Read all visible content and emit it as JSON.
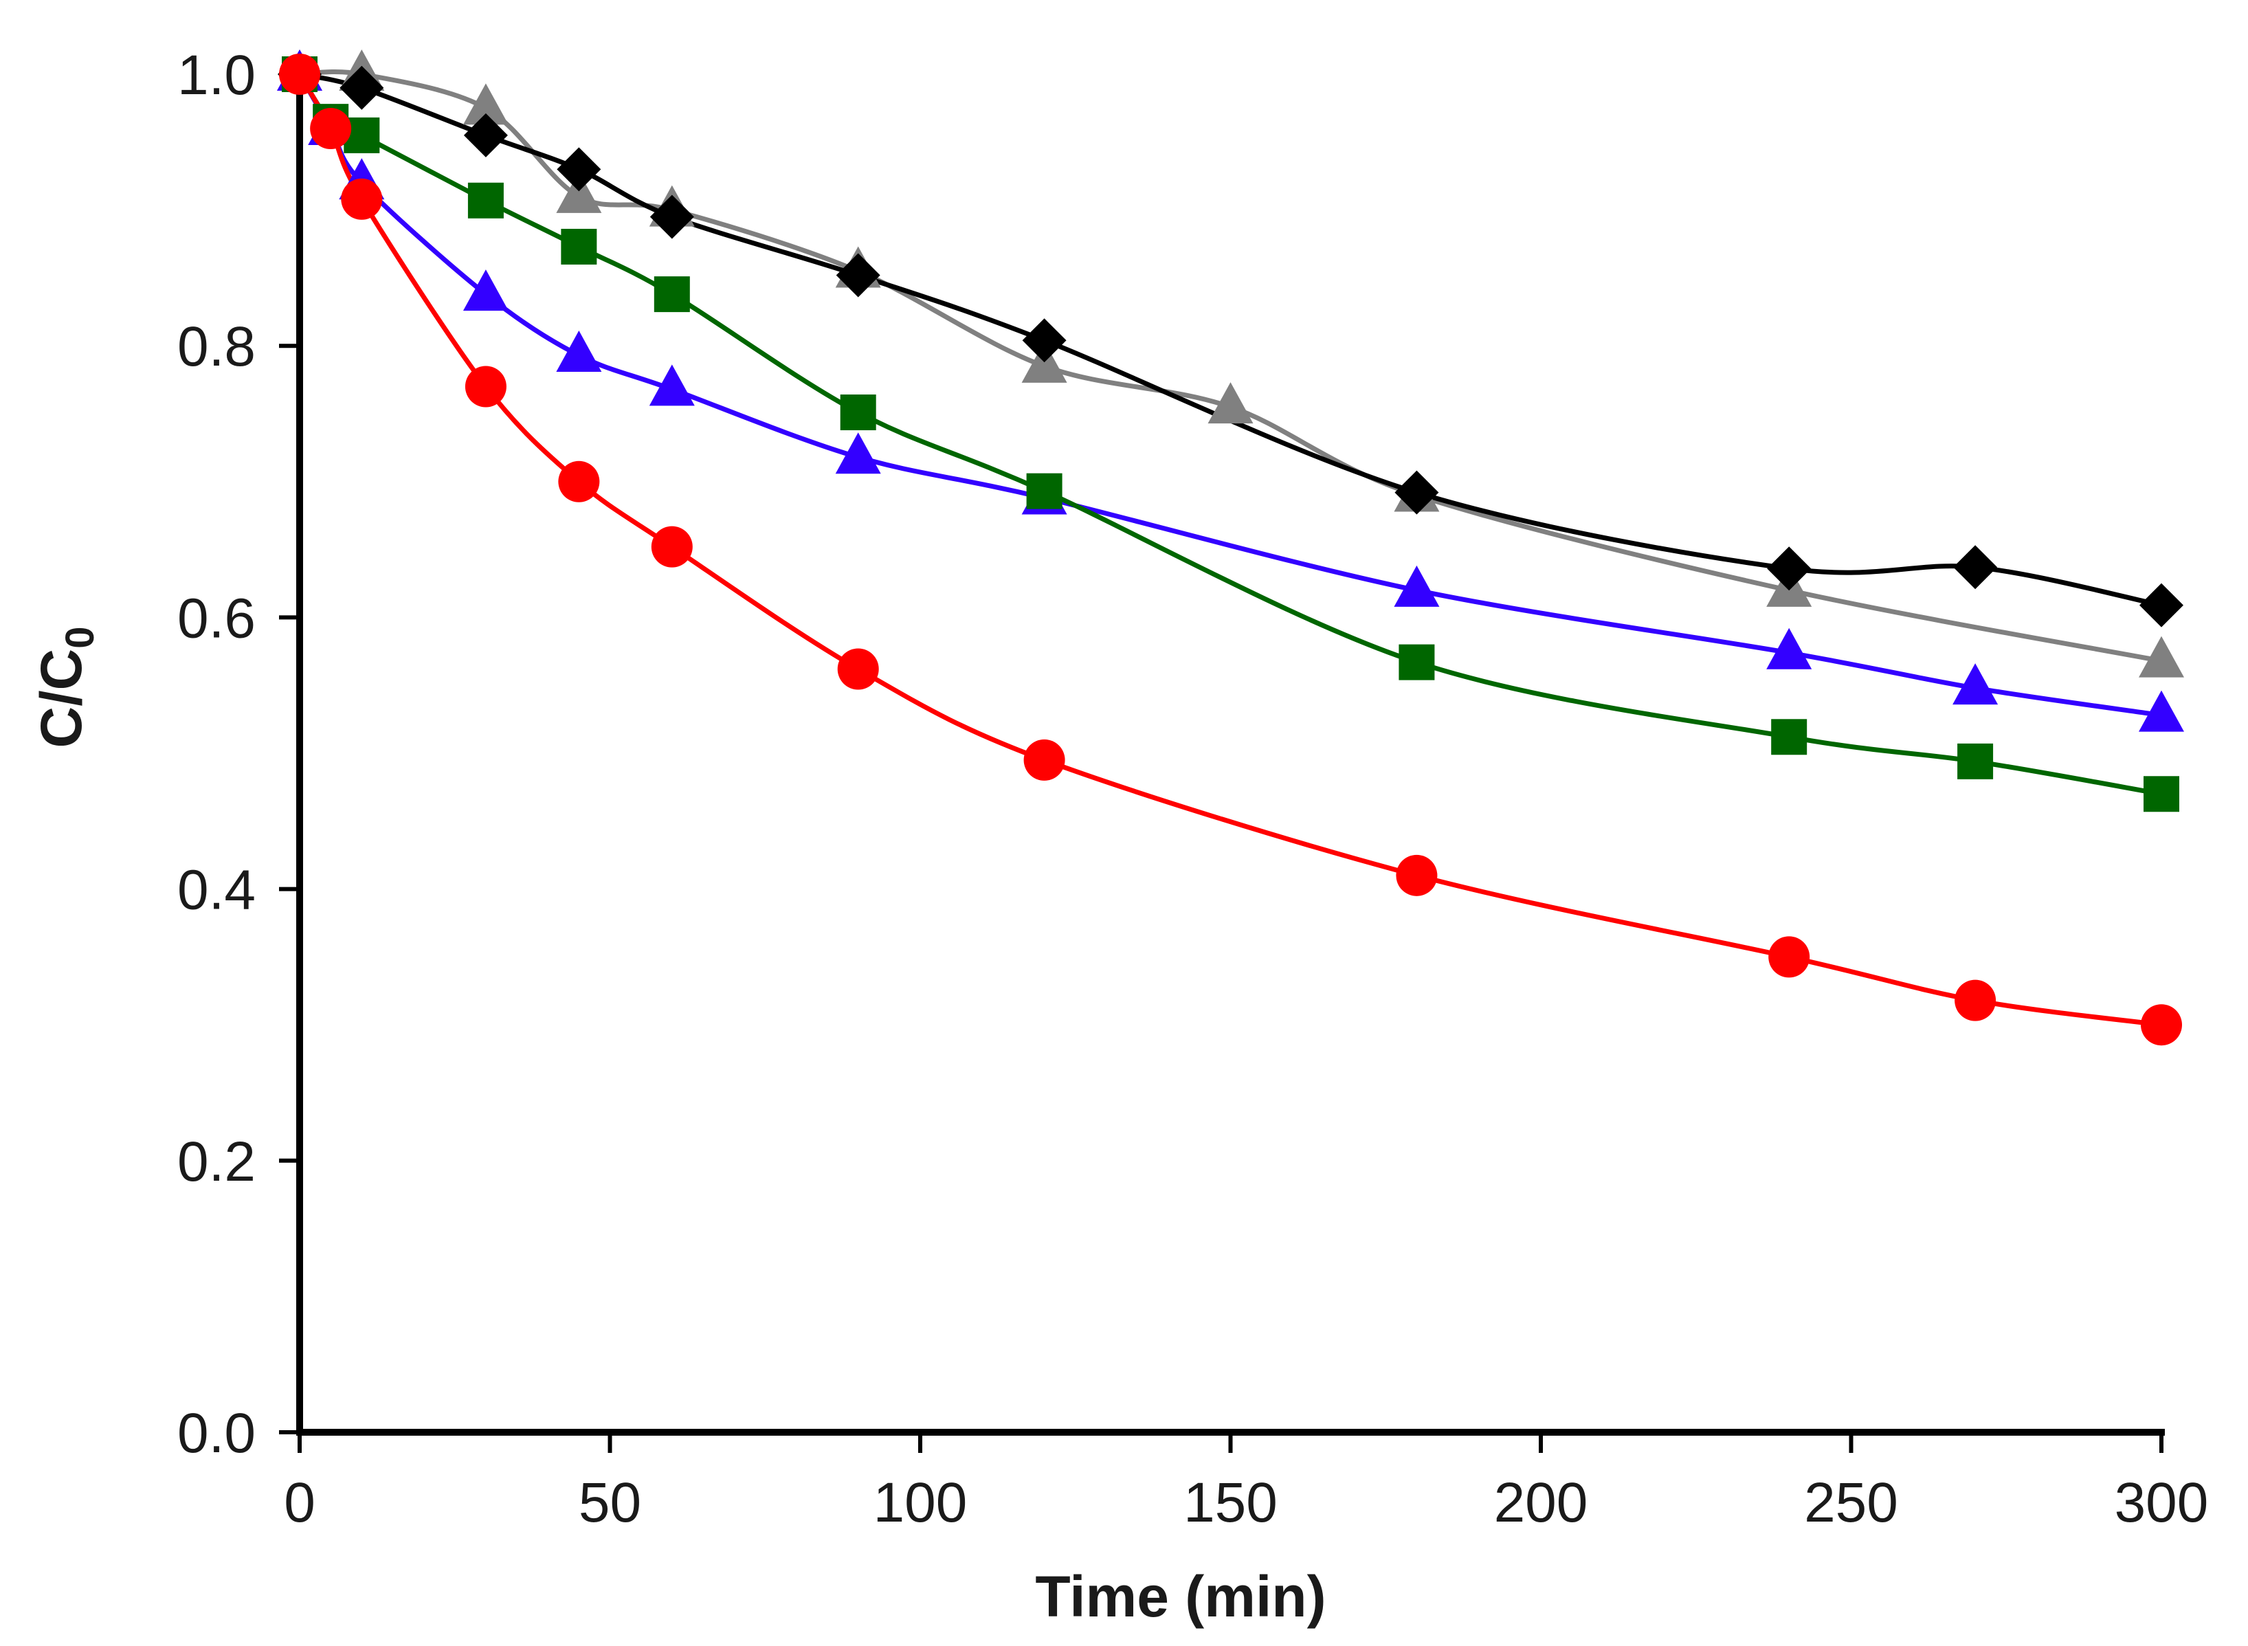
{
  "chart_data": {
    "type": "line",
    "title": "",
    "xlabel": "Time (min)",
    "ylabel": {
      "main": "C/C",
      "subscript": "0"
    },
    "xlim": [
      0,
      300
    ],
    "ylim": [
      0.0,
      1.0
    ],
    "x_ticks": [
      "0",
      "50",
      "100",
      "150",
      "200",
      "250",
      "300"
    ],
    "y_ticks": [
      "0.0",
      "0.2",
      "0.4",
      "0.6",
      "0.8",
      "1.0"
    ],
    "x_tick_values": [
      0,
      50,
      100,
      150,
      200,
      250,
      300
    ],
    "y_tick_values": [
      0.0,
      0.2,
      0.4,
      0.6,
      0.8,
      1.0
    ],
    "grid": false,
    "legend": "none",
    "series": [
      {
        "name": "grey-triangle-series",
        "color": "#808080",
        "marker": "triangle",
        "x": [
          0,
          10,
          30,
          45,
          60,
          90,
          120,
          150,
          180,
          240,
          300
        ],
        "y": [
          1.0,
          1.0,
          0.975,
          0.91,
          0.9,
          0.855,
          0.785,
          0.755,
          0.69,
          0.62,
          0.568
        ]
      },
      {
        "name": "black-diamond-series",
        "color": "#000000",
        "marker": "diamond",
        "x": [
          0,
          10,
          30,
          45,
          60,
          90,
          120,
          180,
          240,
          270,
          300
        ],
        "y": [
          1.0,
          0.99,
          0.955,
          0.93,
          0.895,
          0.852,
          0.804,
          0.692,
          0.636,
          0.637,
          0.609
        ]
      },
      {
        "name": "blue-triangle-series",
        "color": "#3300ff",
        "marker": "triangle",
        "x": [
          0,
          5,
          10,
          30,
          45,
          60,
          90,
          120,
          180,
          240,
          270,
          300
        ],
        "y": [
          1.0,
          0.96,
          0.92,
          0.838,
          0.793,
          0.768,
          0.718,
          0.688,
          0.62,
          0.574,
          0.548,
          0.528
        ]
      },
      {
        "name": "green-square-series",
        "color": "#006600",
        "marker": "square",
        "x": [
          0,
          5,
          10,
          30,
          45,
          60,
          90,
          120,
          180,
          240,
          270,
          300
        ],
        "y": [
          1.0,
          0.965,
          0.955,
          0.907,
          0.873,
          0.838,
          0.751,
          0.693,
          0.567,
          0.512,
          0.494,
          0.47
        ]
      },
      {
        "name": "red-circle-series",
        "color": "#ff0000",
        "marker": "circle",
        "x": [
          0,
          5,
          10,
          30,
          45,
          60,
          90,
          120,
          180,
          240,
          270,
          300
        ],
        "y": [
          1.0,
          0.96,
          0.908,
          0.77,
          0.7,
          0.652,
          0.562,
          0.495,
          0.41,
          0.35,
          0.318,
          0.3
        ]
      }
    ]
  }
}
